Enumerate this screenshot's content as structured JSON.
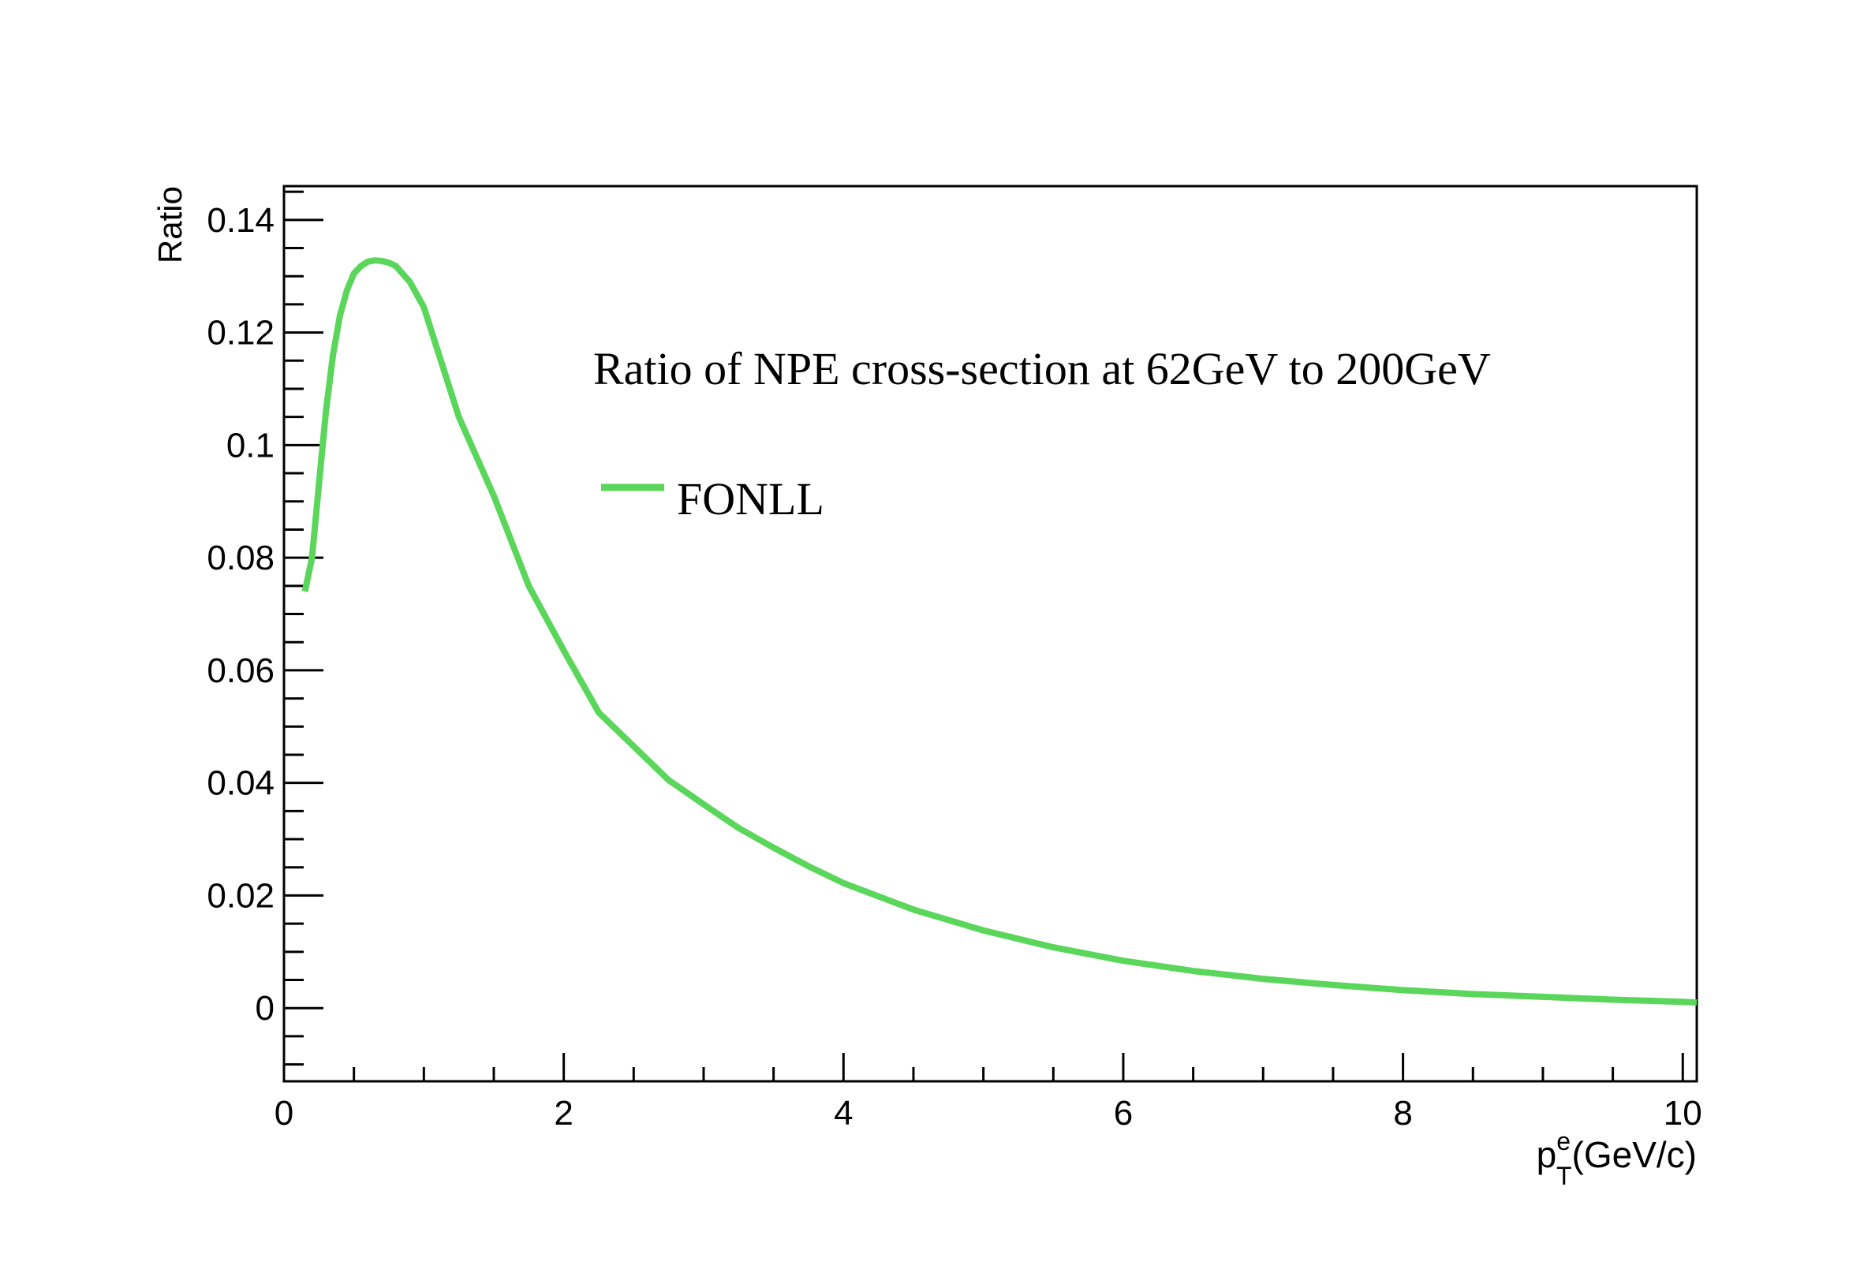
{
  "chart_data": {
    "type": "line",
    "title": "",
    "xlabel": {
      "main": "p",
      "sup": "e",
      "sub": "T",
      "unit": "(GeV/c)"
    },
    "ylabel": "Ratio",
    "xlim": [
      0,
      10.1
    ],
    "ylim": [
      -0.013,
      0.146
    ],
    "x_ticks": [
      0,
      2,
      4,
      6,
      8,
      10
    ],
    "x_tick_labels": [
      "0",
      "2",
      "4",
      "6",
      "8",
      "10"
    ],
    "y_ticks": [
      0,
      0.02,
      0.04,
      0.06,
      0.08,
      0.1,
      0.12,
      0.14
    ],
    "y_tick_labels": [
      "0",
      "0.02",
      "0.04",
      "0.06",
      "0.08",
      "0.1",
      "0.12",
      "0.14"
    ],
    "grid": false,
    "legend": {
      "position": "upper-right",
      "header": "Ratio of NPE cross-section at 62GeV to 200GeV",
      "entries": [
        "FONLL"
      ]
    },
    "series": [
      {
        "name": "FONLL",
        "color": "#5ad65a",
        "x": [
          0.15,
          0.2,
          0.25,
          0.3,
          0.35,
          0.4,
          0.45,
          0.5,
          0.55,
          0.6,
          0.65,
          0.7,
          0.75,
          0.8,
          0.9,
          1.0,
          1.25,
          1.5,
          1.75,
          2.0,
          2.25,
          2.5,
          2.75,
          3.0,
          3.25,
          3.5,
          3.75,
          4.0,
          4.5,
          5.0,
          5.5,
          6.0,
          6.5,
          7.0,
          7.5,
          8.0,
          8.5,
          9.0,
          9.5,
          10.0,
          10.1
        ],
        "y": [
          0.074,
          0.08,
          0.093,
          0.106,
          0.116,
          0.123,
          0.1275,
          0.1305,
          0.1318,
          0.1326,
          0.1328,
          0.1327,
          0.1324,
          0.1318,
          0.129,
          0.1245,
          0.105,
          0.091,
          0.075,
          0.0635,
          0.0525,
          0.0465,
          0.0405,
          0.0362,
          0.032,
          0.0285,
          0.0252,
          0.0222,
          0.0175,
          0.0138,
          0.0108,
          0.0084,
          0.0066,
          0.0052,
          0.0041,
          0.0032,
          0.0025,
          0.002,
          0.0015,
          0.0011,
          0.001
        ]
      }
    ]
  }
}
